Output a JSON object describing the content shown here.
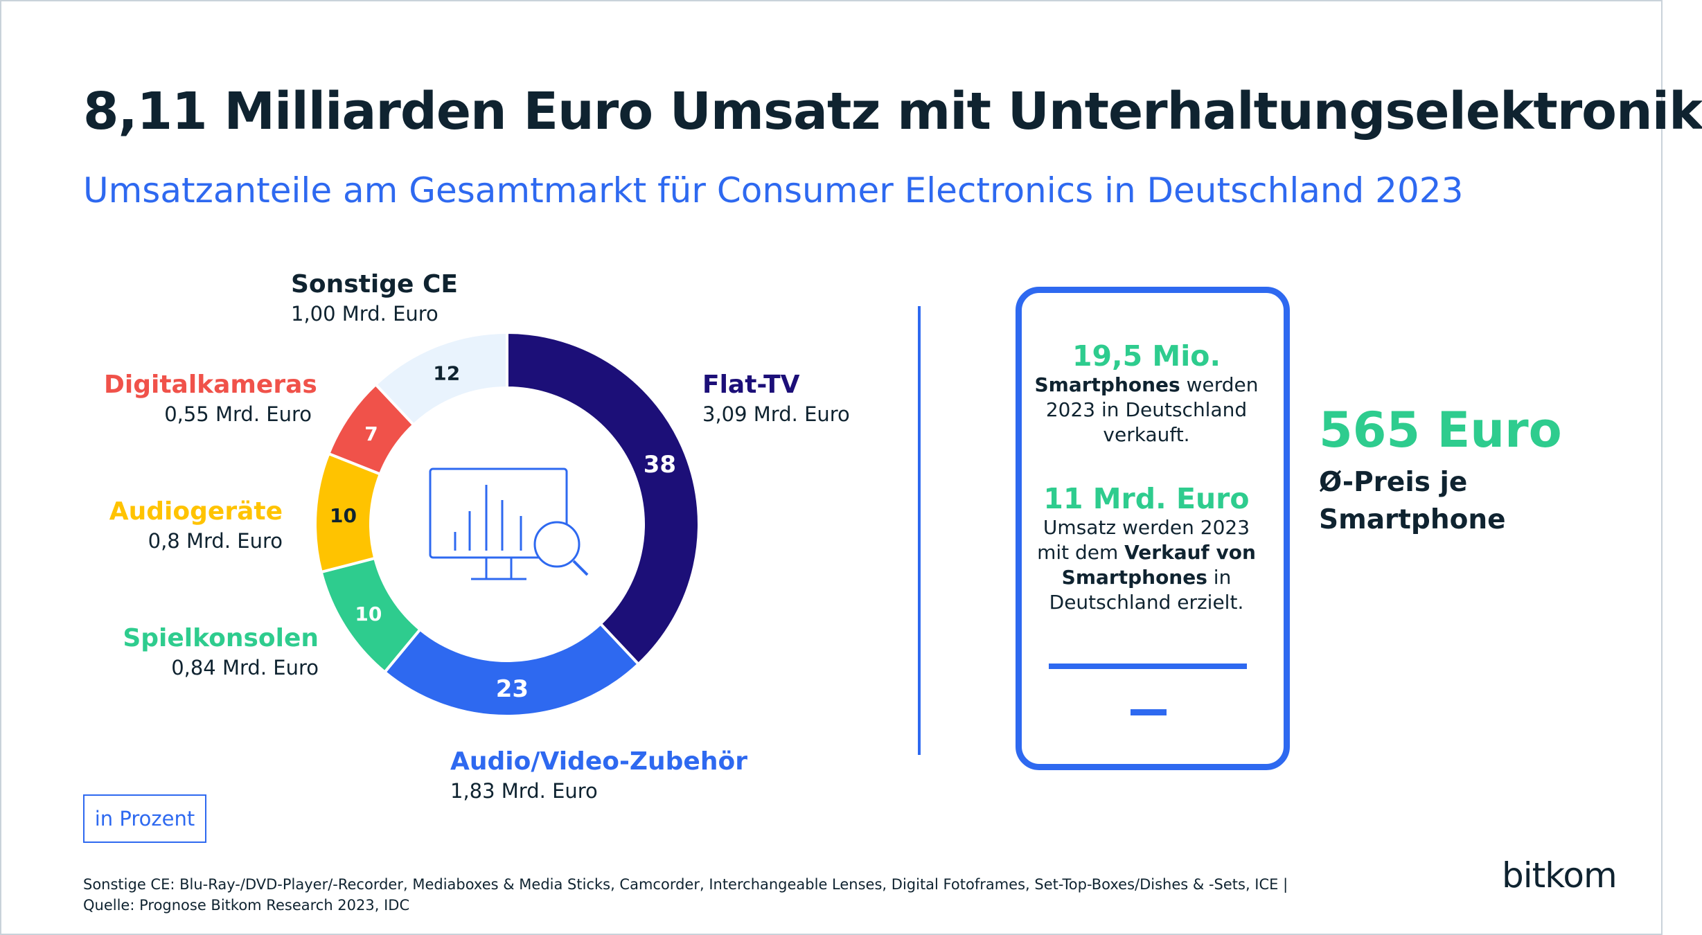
{
  "title": "8,11 Milliarden Euro Umsatz mit Unterhaltungselektronik",
  "subtitle": "Umsatzanteile am Gesamtmarkt für Consumer Electronics in Deutschland 2023",
  "chart_data": {
    "type": "pie",
    "title": "8,11 Milliarden Euro Umsatz mit Unterhaltungselektronik",
    "subtitle": "Umsatzanteile am Gesamtmarkt für Consumer Electronics in Deutschland 2023",
    "unit_note": "in Prozent",
    "categories": [
      "Flat-TV",
      "Audio/Video-Zubehör",
      "Spielkonsolen",
      "Audiogeräte",
      "Digitalkameras",
      "Sonstige CE"
    ],
    "values": [
      38,
      23,
      10,
      10,
      7,
      12
    ],
    "value_labels": [
      "38",
      "23",
      "10",
      "10",
      "7",
      "12"
    ],
    "revenue_labels": [
      "3,09 Mrd. Euro",
      "1,83 Mrd. Euro",
      "0,84 Mrd. Euro",
      "0,8 Mrd. Euro",
      "0,55 Mrd. Euro",
      "1,00 Mrd. Euro"
    ],
    "colors": [
      "#1c0f78",
      "#2e69f0",
      "#2ecc8e",
      "#ffc300",
      "#f0524a",
      "#e9f3fd"
    ],
    "label_colors": [
      "#1c0f78",
      "#2e69f0",
      "#2ecc8e",
      "#ffc300",
      "#f0524a",
      "#0f2330"
    ],
    "value_text_colors": [
      "#ffffff",
      "#ffffff",
      "#ffffff",
      "#0f2330",
      "#ffffff",
      "#0f2330"
    ],
    "donut": true
  },
  "labels": {
    "sonstige": {
      "name": "Sonstige CE",
      "value": "1,00 Mrd. Euro"
    },
    "digital": {
      "name": "Digitalkameras",
      "value": "0,55 Mrd. Euro"
    },
    "audio": {
      "name": "Audiogeräte",
      "value": "0,8 Mrd. Euro"
    },
    "spiel": {
      "name": "Spielkonsolen",
      "value": "0,84 Mrd. Euro"
    },
    "av": {
      "name": "Audio/Video-Zubehör",
      "value": "1,83 Mrd. Euro"
    },
    "flat": {
      "name": "Flat-TV",
      "value": "3,09 Mrd. Euro"
    }
  },
  "center_icon": "monitor-chart-magnifier-icon",
  "phone_stats": {
    "stat1_big": "19,5 Mio.",
    "stat1_bold": "Smartphones",
    "stat1_rest": " werden 2023 in Deutschland verkauft.",
    "stat2_big": "11 Mrd. Euro",
    "stat2_pre": "Umsatz werden 2023 mit dem ",
    "stat2_bold1": "Verkauf von Smartphones",
    "stat2_post": " in Deutschland erzielt."
  },
  "price": {
    "value": "565 Euro",
    "label": "Ø-Preis je Smartphone"
  },
  "note": "in Prozent",
  "footer": {
    "line1": "Sonstige CE: Blu-Ray-/DVD-Player/-Recorder, Mediaboxes & Media Sticks, Camcorder, Interchangeable Lenses, Digital Fotoframes, Set-Top-Boxes/Dishes & -Sets, ICE |",
    "line2": "Quelle: Prognose Bitkom Research 2023, IDC"
  },
  "logo": "bitkom",
  "colors": {
    "accent": "#2e69f0",
    "green": "#2ecc8e",
    "dark": "#0f2330"
  }
}
